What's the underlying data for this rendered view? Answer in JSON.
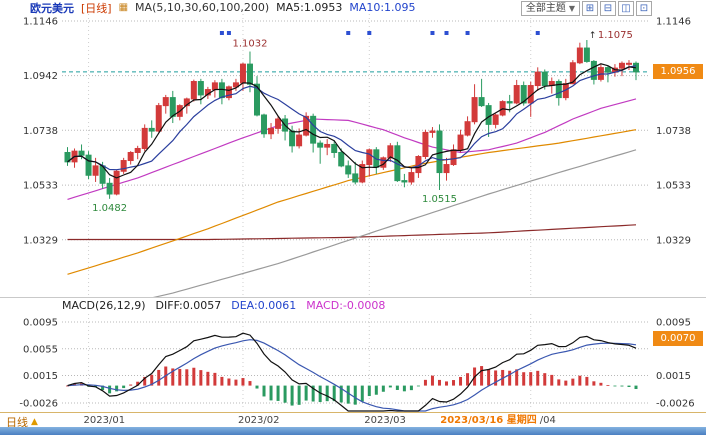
{
  "header": {
    "symbol": "欧元美元",
    "period": "[日线]",
    "chart_icon": "▦",
    "ma_settings": "MA(5,10,30,60,100,200)",
    "ma5": "MA5:1.0953",
    "ma10": "MA10:1.095"
  },
  "toolbar": {
    "theme_label": "全部主题",
    "caret": "▼",
    "icons": [
      "⊞",
      "⊟",
      "◫",
      "⊡"
    ]
  },
  "badges": {
    "price": "1.0956",
    "macd": "0.0070"
  },
  "macd_header": {
    "name": "MACD(26,12,9)",
    "diff": "DIFF:0.0057",
    "dea": "DEA:0.0061",
    "macd": "MACD:-0.0008"
  },
  "period_indicator": {
    "label": "日线",
    "arrow": "▲"
  },
  "chart_data": {
    "type": "candlestick",
    "symbol": "欧元美元 EUR/USD",
    "interval": "daily",
    "colors": {
      "up": "#d23a3a",
      "down": "#2a9a60",
      "grid": "#b8b8b8",
      "price_line": "#1f9e9e",
      "ma5": "#111111",
      "ma10": "#2b3f9e",
      "ma30": "#c13ac1",
      "ma60": "#e08a00",
      "ma100": "#9a9a9a",
      "ma200": "#8b2a2a",
      "annotation_high": "#9b3030",
      "annotation_low": "#2f8a3d",
      "event_marker": "#2d4fd2",
      "axis_text": "#333333",
      "selected_date": "#f07800"
    },
    "main": {
      "y_ticks": [
        1.1146,
        1.0942,
        1.0738,
        1.0533,
        1.0329
      ],
      "y_ticks_right": [
        1.1146,
        1.0738,
        1.0533,
        1.0329
      ],
      "current_price": 1.0956,
      "candles": [
        [
          1.0655,
          1.0675,
          1.0605,
          1.062
        ],
        [
          1.062,
          1.067,
          1.0598,
          1.066
        ],
        [
          1.066,
          1.0685,
          1.063,
          1.0645
        ],
        [
          1.0645,
          1.066,
          1.0555,
          1.057
        ],
        [
          1.057,
          1.0635,
          1.0545,
          1.0605
        ],
        [
          1.0605,
          1.062,
          1.052,
          1.054
        ],
        [
          1.054,
          1.056,
          1.0482,
          1.05
        ],
        [
          1.05,
          1.059,
          1.0495,
          1.0585
        ],
        [
          1.0585,
          1.0635,
          1.0575,
          1.0625
        ],
        [
          1.0625,
          1.066,
          1.061,
          1.0655
        ],
        [
          1.0655,
          1.068,
          1.063,
          1.067
        ],
        [
          1.067,
          1.076,
          1.066,
          1.0745
        ],
        [
          1.0745,
          1.0775,
          1.071,
          1.0735
        ],
        [
          1.0735,
          1.084,
          1.073,
          1.083
        ],
        [
          1.083,
          1.087,
          1.08,
          1.086
        ],
        [
          1.086,
          1.0885,
          1.0765,
          1.079
        ],
        [
          1.079,
          1.0835,
          1.0775,
          1.083
        ],
        [
          1.083,
          1.086,
          1.08,
          1.0855
        ],
        [
          1.0855,
          1.0927,
          1.0845,
          1.092
        ],
        [
          1.092,
          1.093,
          1.0835,
          1.087
        ],
        [
          1.087,
          1.09,
          1.0855,
          1.089
        ],
        [
          1.089,
          1.0925,
          1.086,
          1.0915
        ],
        [
          1.0915,
          1.093,
          1.0835,
          1.086
        ],
        [
          1.086,
          1.0905,
          1.085,
          1.09
        ],
        [
          1.09,
          1.093,
          1.0885,
          1.0915
        ],
        [
          1.0915,
          1.099,
          1.0885,
          1.0985
        ],
        [
          1.0985,
          1.1032,
          1.088,
          1.091
        ],
        [
          1.091,
          1.094,
          1.079,
          1.0795
        ],
        [
          1.0795,
          1.08,
          1.071,
          1.0725
        ],
        [
          1.0725,
          1.0765,
          1.0705,
          1.0745
        ],
        [
          1.0745,
          1.079,
          1.0725,
          1.078
        ],
        [
          1.078,
          1.0795,
          1.07,
          1.0735
        ],
        [
          1.0735,
          1.0755,
          1.0655,
          1.068
        ],
        [
          1.068,
          1.0745,
          1.067,
          1.072
        ],
        [
          1.072,
          1.0805,
          1.0715,
          1.079
        ],
        [
          1.079,
          1.08,
          1.0655,
          1.069
        ],
        [
          1.069,
          1.07,
          1.0613,
          1.0675
        ],
        [
          1.0675,
          1.0705,
          1.0645,
          1.0685
        ],
        [
          1.0685,
          1.07,
          1.0635,
          1.0655
        ],
        [
          1.0655,
          1.067,
          1.06,
          1.0605
        ],
        [
          1.0605,
          1.0625,
          1.056,
          1.0575
        ],
        [
          1.0575,
          1.062,
          1.0536,
          1.0545
        ],
        [
          1.0545,
          1.0625,
          1.054,
          1.061
        ],
        [
          1.061,
          1.067,
          1.0565,
          1.0665
        ],
        [
          1.0665,
          1.0675,
          1.0575,
          1.06
        ],
        [
          1.06,
          1.064,
          1.059,
          1.0635
        ],
        [
          1.0635,
          1.069,
          1.062,
          1.068
        ],
        [
          1.068,
          1.0695,
          1.0545,
          1.055
        ],
        [
          1.055,
          1.0575,
          1.0525,
          1.0545
        ],
        [
          1.0545,
          1.06,
          1.0535,
          1.058
        ],
        [
          1.058,
          1.0645,
          1.056,
          1.064
        ],
        [
          1.064,
          1.074,
          1.063,
          1.073
        ],
        [
          1.073,
          1.075,
          1.071,
          1.0735
        ],
        [
          1.0735,
          1.076,
          1.0515,
          1.058
        ],
        [
          1.058,
          1.0635,
          1.055,
          1.061
        ],
        [
          1.061,
          1.0685,
          1.0605,
          1.0665
        ],
        [
          1.0665,
          1.074,
          1.0655,
          1.072
        ],
        [
          1.072,
          1.079,
          1.0715,
          1.077
        ],
        [
          1.077,
          1.091,
          1.076,
          1.086
        ],
        [
          1.086,
          1.093,
          1.0825,
          1.083
        ],
        [
          1.083,
          1.084,
          1.0713,
          1.076
        ],
        [
          1.076,
          1.08,
          1.0745,
          1.0795
        ],
        [
          1.0795,
          1.085,
          1.079,
          1.0845
        ],
        [
          1.0845,
          1.087,
          1.0805,
          1.084
        ],
        [
          1.084,
          1.0926,
          1.0835,
          1.0905
        ],
        [
          1.0905,
          1.092,
          1.083,
          1.084
        ],
        [
          1.084,
          1.092,
          1.0788,
          1.0905
        ],
        [
          1.0905,
          1.0973,
          1.0885,
          1.0955
        ],
        [
          1.0955,
          1.0965,
          1.089,
          1.0905
        ],
        [
          1.0905,
          1.0935,
          1.0875,
          1.092
        ],
        [
          1.092,
          1.0928,
          1.083,
          1.086
        ],
        [
          1.086,
          1.093,
          1.085,
          1.0912
        ],
        [
          1.0912,
          1.1,
          1.091,
          1.099
        ],
        [
          1.099,
          1.1065,
          1.0985,
          1.1045
        ],
        [
          1.1045,
          1.1075,
          1.099,
          1.0995
        ],
        [
          1.0995,
          1.1,
          1.0909,
          1.0928
        ],
        [
          1.0928,
          1.0983,
          1.092,
          1.0972
        ],
        [
          1.0972,
          1.098,
          1.0917,
          1.0955
        ],
        [
          1.0955,
          1.0985,
          1.0938,
          1.097
        ],
        [
          1.097,
          1.0995,
          1.094,
          1.0988
        ],
        [
          1.0988,
          1.1,
          1.0963,
          1.0988
        ],
        [
          1.0988,
          1.0995,
          1.0925,
          1.0956
        ]
      ],
      "ma_overlays": {
        "ma5": {
          "window": 5
        },
        "ma10": {
          "window": 10
        },
        "ma30": {
          "points": [
            [
              0,
              1.048
            ],
            [
              5,
              1.052
            ],
            [
              10,
              1.056
            ],
            [
              15,
              1.061
            ],
            [
              20,
              1.066
            ],
            [
              25,
              1.071
            ],
            [
              30,
              1.0755
            ],
            [
              35,
              1.078
            ],
            [
              40,
              1.0775
            ],
            [
              45,
              1.074
            ],
            [
              48,
              1.071
            ],
            [
              52,
              1.0675
            ],
            [
              56,
              1.0655
            ],
            [
              60,
              1.0665
            ],
            [
              64,
              1.069
            ],
            [
              68,
              1.073
            ],
            [
              72,
              1.078
            ],
            [
              76,
              1.082
            ],
            [
              81,
              1.0855
            ]
          ]
        },
        "ma60": {
          "points": [
            [
              0,
              1.02
            ],
            [
              10,
              1.028
            ],
            [
              20,
              1.037
            ],
            [
              30,
              1.047
            ],
            [
              40,
              1.055
            ],
            [
              50,
              1.061
            ],
            [
              60,
              1.0655
            ],
            [
              70,
              1.069
            ],
            [
              81,
              1.074
            ]
          ]
        },
        "ma100": {
          "points": [
            [
              0,
              1.004
            ],
            [
              15,
              1.013
            ],
            [
              30,
              1.024
            ],
            [
              45,
              1.037
            ],
            [
              60,
              1.05
            ],
            [
              70,
              1.058
            ],
            [
              81,
              1.0665
            ]
          ]
        },
        "ma200": {
          "points": [
            [
              0,
              1.033
            ],
            [
              20,
              1.033
            ],
            [
              40,
              1.0338
            ],
            [
              60,
              1.0355
            ],
            [
              81,
              1.0385
            ]
          ]
        }
      },
      "annotations": [
        {
          "i": 6,
          "price": 1.0482,
          "text": "1.0482",
          "type": "low"
        },
        {
          "i": 26,
          "price": 1.1032,
          "text": "1.1032",
          "type": "high"
        },
        {
          "i": 53,
          "price": 1.0515,
          "text": "1.0515",
          "type": "low"
        },
        {
          "i": 74,
          "price": 1.1075,
          "text": "1.1075",
          "type": "high"
        }
      ],
      "event_marker_indices": [
        22,
        23,
        40,
        43,
        52,
        54,
        57,
        67
      ],
      "x_labels": [
        {
          "i": 3,
          "text": "2023/01"
        },
        {
          "i": 25,
          "text": "2023/02"
        },
        {
          "i": 43,
          "text": "2023/03"
        },
        {
          "i": 66,
          "text": "/04"
        }
      ],
      "selected_date_label": {
        "text": "2023/03/16 星期四",
        "anchor_i": 66
      }
    },
    "macd": {
      "params": [
        26,
        12,
        9
      ],
      "diff": 0.0057,
      "dea": 0.0061,
      "macd": -0.0008,
      "current_marker": 0.007,
      "y_ticks": [
        0.0095,
        0.0055,
        0.0015,
        -0.0026
      ],
      "y_ticks_right": [
        0.0095,
        0.0015,
        -0.0026
      ]
    }
  }
}
